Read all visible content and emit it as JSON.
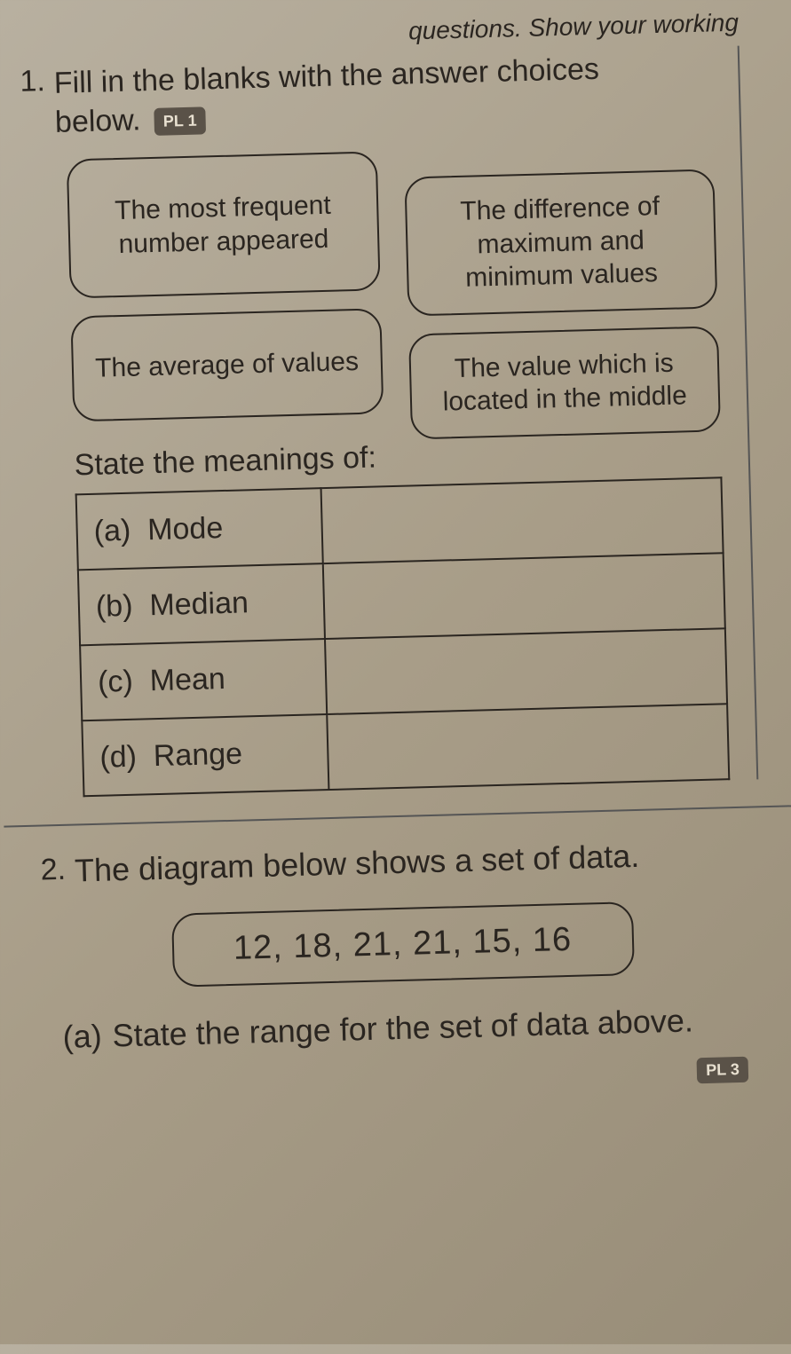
{
  "header_partial": "questions. Show your working",
  "q1": {
    "number": "1.",
    "text_line1": "Fill in the blanks with the answer choices",
    "text_line2": "below.",
    "badge": "PL 1",
    "choices": [
      "The most frequent number appeared",
      "The difference of maximum and minimum values",
      "The average of values",
      "The value which is located in the middle"
    ],
    "subheading": "State the meanings of:",
    "table_rows": [
      {
        "label": "(a)",
        "term": "Mode"
      },
      {
        "label": "(b)",
        "term": "Median"
      },
      {
        "label": "(c)",
        "term": "Mean"
      },
      {
        "label": "(d)",
        "term": "Range"
      }
    ]
  },
  "q2": {
    "number": "2.",
    "text": "The diagram below shows a set of data.",
    "data": "12, 18, 21, 21, 15, 16",
    "subq_label": "(a)",
    "subq_text": "State the range for the set of data above.",
    "badge": "PL 3"
  },
  "colors": {
    "page_bg": "#a89d88",
    "text": "#2a2520",
    "border": "#2a2520",
    "badge_bg": "#5a5248",
    "badge_text": "#e8e0d0"
  }
}
